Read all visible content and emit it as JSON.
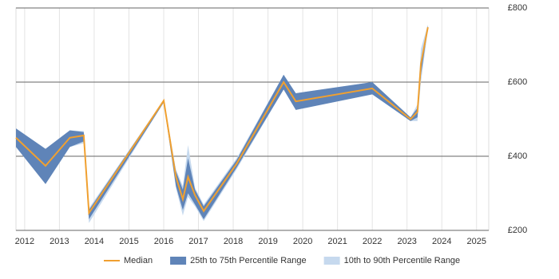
{
  "chart_data": {
    "type": "band-line",
    "x": [
      2011.75,
      2012.6,
      2013.3,
      2013.7,
      2013.85,
      2016.0,
      2016.35,
      2016.55,
      2016.7,
      2016.9,
      2017.15,
      2018.1,
      2019.45,
      2019.8,
      2022.0,
      2023.1,
      2023.3,
      2023.4,
      2023.6
    ],
    "series": [
      {
        "name": "Median",
        "color": "#f0a030",
        "values": [
          450,
          374,
          450,
          456,
          247,
          550,
          345,
          284,
          344,
          295,
          252,
          380,
          600,
          548,
          583,
          500,
          520,
          650,
          748
        ]
      },
      {
        "name": "25th to 75th Percentile Range",
        "color": "#5f84b8",
        "low": [
          425,
          325,
          425,
          440,
          230,
          545,
          320,
          255,
          300,
          270,
          230,
          370,
          580,
          525,
          567,
          495,
          505,
          620,
          745
        ],
        "high": [
          475,
          420,
          470,
          465,
          255,
          552,
          360,
          310,
          395,
          310,
          265,
          390,
          620,
          570,
          600,
          505,
          530,
          660,
          752
        ]
      },
      {
        "name": "10th to 90th Percentile Range",
        "color": "#c6d9ee",
        "low": [
          425,
          325,
          425,
          435,
          220,
          545,
          315,
          240,
          290,
          265,
          225,
          365,
          580,
          525,
          567,
          495,
          495,
          600,
          740
        ],
        "high": [
          475,
          420,
          470,
          468,
          260,
          552,
          365,
          320,
          430,
          315,
          270,
          395,
          620,
          570,
          600,
          505,
          540,
          690,
          755
        ]
      }
    ],
    "xlim": [
      2011.75,
      2025.35
    ],
    "xticks": [
      2012,
      2013,
      2014,
      2015,
      2016,
      2017,
      2018,
      2019,
      2020,
      2021,
      2022,
      2023,
      2024,
      2025
    ],
    "ylim": [
      200,
      800
    ],
    "yticks": [
      {
        "value": 200,
        "label": "£200"
      },
      {
        "value": 400,
        "label": "£400"
      },
      {
        "value": 600,
        "label": "£600"
      },
      {
        "value": 800,
        "label": "£800"
      }
    ],
    "grid": true
  }
}
